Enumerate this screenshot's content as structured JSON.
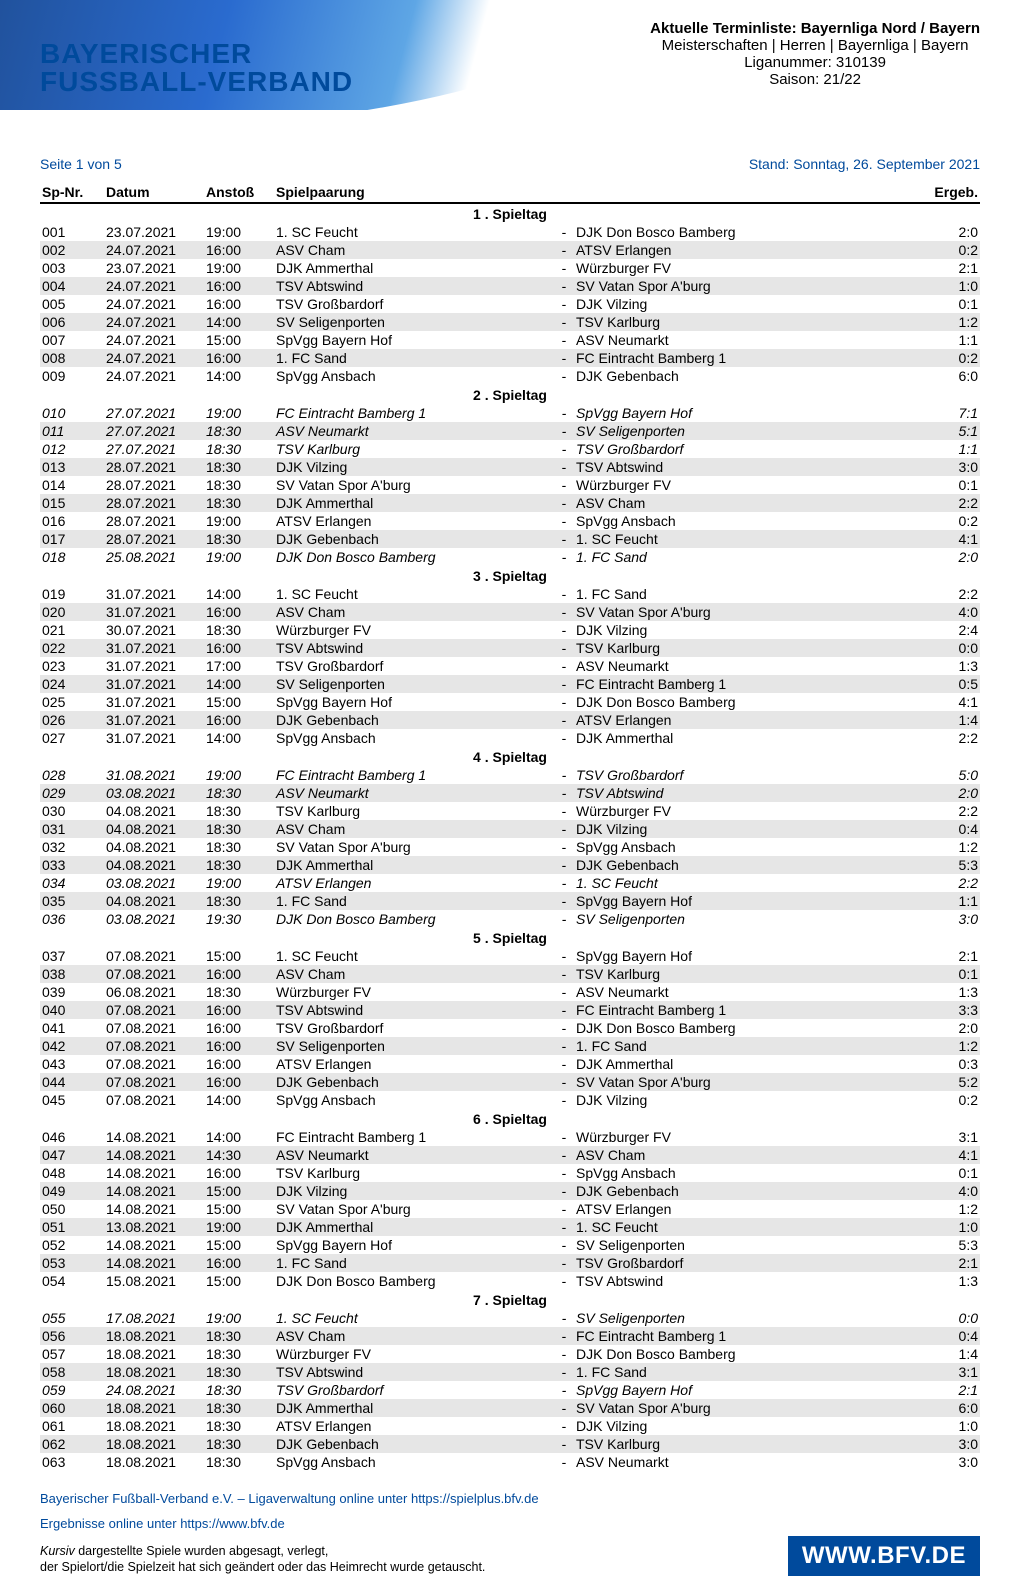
{
  "colors": {
    "brand_blue": "#004a9c",
    "shade_bg": "#e6e6e6",
    "text": "#000000",
    "white": "#ffffff"
  },
  "typography": {
    "body_fontsize_pt": 10,
    "header_title_fontsize_pt": 11,
    "logo_fontsize_pt": 21
  },
  "header": {
    "logo_line1": "BAYERISCHER",
    "logo_line2": "FUSSBALL-VERBAND",
    "title": "Aktuelle Terminliste: Bayernliga Nord / Bayern",
    "sub1": "Meisterschaften | Herren | Bayernliga | Bayern",
    "sub2": "Liganummer: 310139",
    "sub3": "Saison: 21/22"
  },
  "subline": {
    "left": "Seite 1 von 5",
    "right": "Stand: Sonntag, 26. September 2021"
  },
  "columns": {
    "spnr": "Sp-Nr.",
    "datum": "Datum",
    "anstoss": "Anstoß",
    "paarung": "Spielpaarung",
    "ergeb": "Ergeb."
  },
  "spieltage": [
    {
      "label": "1 . Spieltag",
      "matches": [
        {
          "nr": "001",
          "datum": "23.07.2021",
          "anstoss": "19:00",
          "home": "1. SC Feucht",
          "away": "DJK Don Bosco Bamberg",
          "erg": "2:0",
          "shade": false,
          "italic": false
        },
        {
          "nr": "002",
          "datum": "24.07.2021",
          "anstoss": "16:00",
          "home": "ASV Cham",
          "away": "ATSV Erlangen",
          "erg": "0:2",
          "shade": true,
          "italic": false
        },
        {
          "nr": "003",
          "datum": "23.07.2021",
          "anstoss": "19:00",
          "home": "DJK Ammerthal",
          "away": "Würzburger FV",
          "erg": "2:1",
          "shade": false,
          "italic": false
        },
        {
          "nr": "004",
          "datum": "24.07.2021",
          "anstoss": "16:00",
          "home": "TSV Abtswind",
          "away": "SV Vatan Spor A'burg",
          "erg": "1:0",
          "shade": true,
          "italic": false
        },
        {
          "nr": "005",
          "datum": "24.07.2021",
          "anstoss": "16:00",
          "home": "TSV Großbardorf",
          "away": "DJK Vilzing",
          "erg": "0:1",
          "shade": false,
          "italic": false
        },
        {
          "nr": "006",
          "datum": "24.07.2021",
          "anstoss": "14:00",
          "home": "SV Seligenporten",
          "away": "TSV Karlburg",
          "erg": "1:2",
          "shade": true,
          "italic": false
        },
        {
          "nr": "007",
          "datum": "24.07.2021",
          "anstoss": "15:00",
          "home": "SpVgg Bayern Hof",
          "away": "ASV Neumarkt",
          "erg": "1:1",
          "shade": false,
          "italic": false
        },
        {
          "nr": "008",
          "datum": "24.07.2021",
          "anstoss": "16:00",
          "home": "1. FC Sand",
          "away": "FC Eintracht Bamberg 1",
          "erg": "0:2",
          "shade": true,
          "italic": false
        },
        {
          "nr": "009",
          "datum": "24.07.2021",
          "anstoss": "14:00",
          "home": "SpVgg Ansbach",
          "away": "DJK Gebenbach",
          "erg": "6:0",
          "shade": false,
          "italic": false
        }
      ]
    },
    {
      "label": "2 . Spieltag",
      "matches": [
        {
          "nr": "010",
          "datum": "27.07.2021",
          "anstoss": "19:00",
          "home": "FC Eintracht Bamberg 1",
          "away": "SpVgg Bayern Hof",
          "erg": "7:1",
          "shade": false,
          "italic": true
        },
        {
          "nr": "011",
          "datum": "27.07.2021",
          "anstoss": "18:30",
          "home": "ASV Neumarkt",
          "away": "SV Seligenporten",
          "erg": "5:1",
          "shade": true,
          "italic": true
        },
        {
          "nr": "012",
          "datum": "27.07.2021",
          "anstoss": "18:30",
          "home": "TSV Karlburg",
          "away": "TSV Großbardorf",
          "erg": "1:1",
          "shade": false,
          "italic": true
        },
        {
          "nr": "013",
          "datum": "28.07.2021",
          "anstoss": "18:30",
          "home": "DJK Vilzing",
          "away": "TSV Abtswind",
          "erg": "3:0",
          "shade": true,
          "italic": false
        },
        {
          "nr": "014",
          "datum": "28.07.2021",
          "anstoss": "18:30",
          "home": "SV Vatan Spor A'burg",
          "away": "Würzburger FV",
          "erg": "0:1",
          "shade": false,
          "italic": false
        },
        {
          "nr": "015",
          "datum": "28.07.2021",
          "anstoss": "18:30",
          "home": "DJK Ammerthal",
          "away": "ASV Cham",
          "erg": "2:2",
          "shade": true,
          "italic": false
        },
        {
          "nr": "016",
          "datum": "28.07.2021",
          "anstoss": "19:00",
          "home": "ATSV Erlangen",
          "away": "SpVgg Ansbach",
          "erg": "0:2",
          "shade": false,
          "italic": false
        },
        {
          "nr": "017",
          "datum": "28.07.2021",
          "anstoss": "18:30",
          "home": "DJK Gebenbach",
          "away": "1. SC Feucht",
          "erg": "4:1",
          "shade": true,
          "italic": false
        },
        {
          "nr": "018",
          "datum": "25.08.2021",
          "anstoss": "19:00",
          "home": "DJK Don Bosco Bamberg",
          "away": "1. FC Sand",
          "erg": "2:0",
          "shade": false,
          "italic": true
        }
      ]
    },
    {
      "label": "3 . Spieltag",
      "matches": [
        {
          "nr": "019",
          "datum": "31.07.2021",
          "anstoss": "14:00",
          "home": "1. SC Feucht",
          "away": "1. FC Sand",
          "erg": "2:2",
          "shade": false,
          "italic": false
        },
        {
          "nr": "020",
          "datum": "31.07.2021",
          "anstoss": "16:00",
          "home": "ASV Cham",
          "away": "SV Vatan Spor A'burg",
          "erg": "4:0",
          "shade": true,
          "italic": false
        },
        {
          "nr": "021",
          "datum": "30.07.2021",
          "anstoss": "18:30",
          "home": "Würzburger FV",
          "away": "DJK Vilzing",
          "erg": "2:4",
          "shade": false,
          "italic": false
        },
        {
          "nr": "022",
          "datum": "31.07.2021",
          "anstoss": "16:00",
          "home": "TSV Abtswind",
          "away": "TSV Karlburg",
          "erg": "0:0",
          "shade": true,
          "italic": false
        },
        {
          "nr": "023",
          "datum": "31.07.2021",
          "anstoss": "17:00",
          "home": "TSV Großbardorf",
          "away": "ASV Neumarkt",
          "erg": "1:3",
          "shade": false,
          "italic": false
        },
        {
          "nr": "024",
          "datum": "31.07.2021",
          "anstoss": "14:00",
          "home": "SV Seligenporten",
          "away": "FC Eintracht Bamberg 1",
          "erg": "0:5",
          "shade": true,
          "italic": false
        },
        {
          "nr": "025",
          "datum": "31.07.2021",
          "anstoss": "15:00",
          "home": "SpVgg Bayern Hof",
          "away": "DJK Don Bosco Bamberg",
          "erg": "4:1",
          "shade": false,
          "italic": false
        },
        {
          "nr": "026",
          "datum": "31.07.2021",
          "anstoss": "16:00",
          "home": "DJK Gebenbach",
          "away": "ATSV Erlangen",
          "erg": "1:4",
          "shade": true,
          "italic": false
        },
        {
          "nr": "027",
          "datum": "31.07.2021",
          "anstoss": "14:00",
          "home": "SpVgg Ansbach",
          "away": "DJK Ammerthal",
          "erg": "2:2",
          "shade": false,
          "italic": false
        }
      ]
    },
    {
      "label": "4 . Spieltag",
      "matches": [
        {
          "nr": "028",
          "datum": "31.08.2021",
          "anstoss": "19:00",
          "home": "FC Eintracht Bamberg 1",
          "away": "TSV Großbardorf",
          "erg": "5:0",
          "shade": false,
          "italic": true
        },
        {
          "nr": "029",
          "datum": "03.08.2021",
          "anstoss": "18:30",
          "home": "ASV Neumarkt",
          "away": "TSV Abtswind",
          "erg": "2:0",
          "shade": true,
          "italic": true
        },
        {
          "nr": "030",
          "datum": "04.08.2021",
          "anstoss": "18:30",
          "home": "TSV Karlburg",
          "away": "Würzburger FV",
          "erg": "2:2",
          "shade": false,
          "italic": false
        },
        {
          "nr": "031",
          "datum": "04.08.2021",
          "anstoss": "18:30",
          "home": "ASV Cham",
          "away": "DJK Vilzing",
          "erg": "0:4",
          "shade": true,
          "italic": false
        },
        {
          "nr": "032",
          "datum": "04.08.2021",
          "anstoss": "18:30",
          "home": "SV Vatan Spor A'burg",
          "away": "SpVgg Ansbach",
          "erg": "1:2",
          "shade": false,
          "italic": false
        },
        {
          "nr": "033",
          "datum": "04.08.2021",
          "anstoss": "18:30",
          "home": "DJK Ammerthal",
          "away": "DJK Gebenbach",
          "erg": "5:3",
          "shade": true,
          "italic": false
        },
        {
          "nr": "034",
          "datum": "03.08.2021",
          "anstoss": "19:00",
          "home": "ATSV Erlangen",
          "away": "1. SC Feucht",
          "erg": "2:2",
          "shade": false,
          "italic": true
        },
        {
          "nr": "035",
          "datum": "04.08.2021",
          "anstoss": "18:30",
          "home": "1. FC Sand",
          "away": "SpVgg Bayern Hof",
          "erg": "1:1",
          "shade": true,
          "italic": false
        },
        {
          "nr": "036",
          "datum": "03.08.2021",
          "anstoss": "19:30",
          "home": "DJK Don Bosco Bamberg",
          "away": "SV Seligenporten",
          "erg": "3:0",
          "shade": false,
          "italic": true
        }
      ]
    },
    {
      "label": "5 . Spieltag",
      "matches": [
        {
          "nr": "037",
          "datum": "07.08.2021",
          "anstoss": "15:00",
          "home": "1. SC Feucht",
          "away": "SpVgg Bayern Hof",
          "erg": "2:1",
          "shade": false,
          "italic": false
        },
        {
          "nr": "038",
          "datum": "07.08.2021",
          "anstoss": "16:00",
          "home": "ASV Cham",
          "away": "TSV Karlburg",
          "erg": "0:1",
          "shade": true,
          "italic": false
        },
        {
          "nr": "039",
          "datum": "06.08.2021",
          "anstoss": "18:30",
          "home": "Würzburger FV",
          "away": "ASV Neumarkt",
          "erg": "1:3",
          "shade": false,
          "italic": false
        },
        {
          "nr": "040",
          "datum": "07.08.2021",
          "anstoss": "16:00",
          "home": "TSV Abtswind",
          "away": "FC Eintracht Bamberg 1",
          "erg": "3:3",
          "shade": true,
          "italic": false
        },
        {
          "nr": "041",
          "datum": "07.08.2021",
          "anstoss": "16:00",
          "home": "TSV Großbardorf",
          "away": "DJK Don Bosco Bamberg",
          "erg": "2:0",
          "shade": false,
          "italic": false
        },
        {
          "nr": "042",
          "datum": "07.08.2021",
          "anstoss": "16:00",
          "home": "SV Seligenporten",
          "away": "1. FC Sand",
          "erg": "1:2",
          "shade": true,
          "italic": false
        },
        {
          "nr": "043",
          "datum": "07.08.2021",
          "anstoss": "16:00",
          "home": "ATSV Erlangen",
          "away": "DJK Ammerthal",
          "erg": "0:3",
          "shade": false,
          "italic": false
        },
        {
          "nr": "044",
          "datum": "07.08.2021",
          "anstoss": "16:00",
          "home": "DJK Gebenbach",
          "away": "SV Vatan Spor A'burg",
          "erg": "5:2",
          "shade": true,
          "italic": false
        },
        {
          "nr": "045",
          "datum": "07.08.2021",
          "anstoss": "14:00",
          "home": "SpVgg Ansbach",
          "away": "DJK Vilzing",
          "erg": "0:2",
          "shade": false,
          "italic": false
        }
      ]
    },
    {
      "label": "6 . Spieltag",
      "matches": [
        {
          "nr": "046",
          "datum": "14.08.2021",
          "anstoss": "14:00",
          "home": "FC Eintracht Bamberg 1",
          "away": "Würzburger FV",
          "erg": "3:1",
          "shade": false,
          "italic": false
        },
        {
          "nr": "047",
          "datum": "14.08.2021",
          "anstoss": "14:30",
          "home": "ASV Neumarkt",
          "away": "ASV Cham",
          "erg": "4:1",
          "shade": true,
          "italic": false
        },
        {
          "nr": "048",
          "datum": "14.08.2021",
          "anstoss": "16:00",
          "home": "TSV Karlburg",
          "away": "SpVgg Ansbach",
          "erg": "0:1",
          "shade": false,
          "italic": false
        },
        {
          "nr": "049",
          "datum": "14.08.2021",
          "anstoss": "15:00",
          "home": "DJK Vilzing",
          "away": "DJK Gebenbach",
          "erg": "4:0",
          "shade": true,
          "italic": false
        },
        {
          "nr": "050",
          "datum": "14.08.2021",
          "anstoss": "15:00",
          "home": "SV Vatan Spor A'burg",
          "away": "ATSV Erlangen",
          "erg": "1:2",
          "shade": false,
          "italic": false
        },
        {
          "nr": "051",
          "datum": "13.08.2021",
          "anstoss": "19:00",
          "home": "DJK Ammerthal",
          "away": "1. SC Feucht",
          "erg": "1:0",
          "shade": true,
          "italic": false
        },
        {
          "nr": "052",
          "datum": "14.08.2021",
          "anstoss": "15:00",
          "home": "SpVgg Bayern Hof",
          "away": "SV Seligenporten",
          "erg": "5:3",
          "shade": false,
          "italic": false
        },
        {
          "nr": "053",
          "datum": "14.08.2021",
          "anstoss": "16:00",
          "home": "1. FC Sand",
          "away": "TSV Großbardorf",
          "erg": "2:1",
          "shade": true,
          "italic": false
        },
        {
          "nr": "054",
          "datum": "15.08.2021",
          "anstoss": "15:00",
          "home": "DJK Don Bosco Bamberg",
          "away": "TSV Abtswind",
          "erg": "1:3",
          "shade": false,
          "italic": false
        }
      ]
    },
    {
      "label": "7 . Spieltag",
      "matches": [
        {
          "nr": "055",
          "datum": "17.08.2021",
          "anstoss": "19:00",
          "home": "1. SC Feucht",
          "away": "SV Seligenporten",
          "erg": "0:0",
          "shade": false,
          "italic": true
        },
        {
          "nr": "056",
          "datum": "18.08.2021",
          "anstoss": "18:30",
          "home": "ASV Cham",
          "away": "FC Eintracht Bamberg 1",
          "erg": "0:4",
          "shade": true,
          "italic": false
        },
        {
          "nr": "057",
          "datum": "18.08.2021",
          "anstoss": "18:30",
          "home": "Würzburger FV",
          "away": "DJK Don Bosco Bamberg",
          "erg": "1:4",
          "shade": false,
          "italic": false
        },
        {
          "nr": "058",
          "datum": "18.08.2021",
          "anstoss": "18:30",
          "home": "TSV Abtswind",
          "away": "1. FC Sand",
          "erg": "3:1",
          "shade": true,
          "italic": false
        },
        {
          "nr": "059",
          "datum": "24.08.2021",
          "anstoss": "18:30",
          "home": "TSV Großbardorf",
          "away": "SpVgg Bayern Hof",
          "erg": "2:1",
          "shade": false,
          "italic": true
        },
        {
          "nr": "060",
          "datum": "18.08.2021",
          "anstoss": "18:30",
          "home": "DJK Ammerthal",
          "away": "SV Vatan Spor A'burg",
          "erg": "6:0",
          "shade": true,
          "italic": false
        },
        {
          "nr": "061",
          "datum": "18.08.2021",
          "anstoss": "18:30",
          "home": "ATSV Erlangen",
          "away": "DJK Vilzing",
          "erg": "1:0",
          "shade": false,
          "italic": false
        },
        {
          "nr": "062",
          "datum": "18.08.2021",
          "anstoss": "18:30",
          "home": "DJK Gebenbach",
          "away": "TSV Karlburg",
          "erg": "3:0",
          "shade": true,
          "italic": false
        },
        {
          "nr": "063",
          "datum": "18.08.2021",
          "anstoss": "18:30",
          "home": "SpVgg Ansbach",
          "away": "ASV Neumarkt",
          "erg": "3:0",
          "shade": false,
          "italic": false
        }
      ]
    }
  ],
  "footer": {
    "link1": "Bayerischer Fußball-Verband e.V. – Ligaverwaltung online unter https://spielplus.bfv.de",
    "link2": "Ergebnisse online unter https://www.bfv.de",
    "note1_ital": "Kursiv",
    "note1_rest": " dargestellte Spiele wurden abgesagt, verlegt,",
    "note2": "der Spielort/die Spielzeit hat sich geändert oder das Heimrecht wurde getauscht.",
    "logo": "WWW.BFV.DE"
  }
}
